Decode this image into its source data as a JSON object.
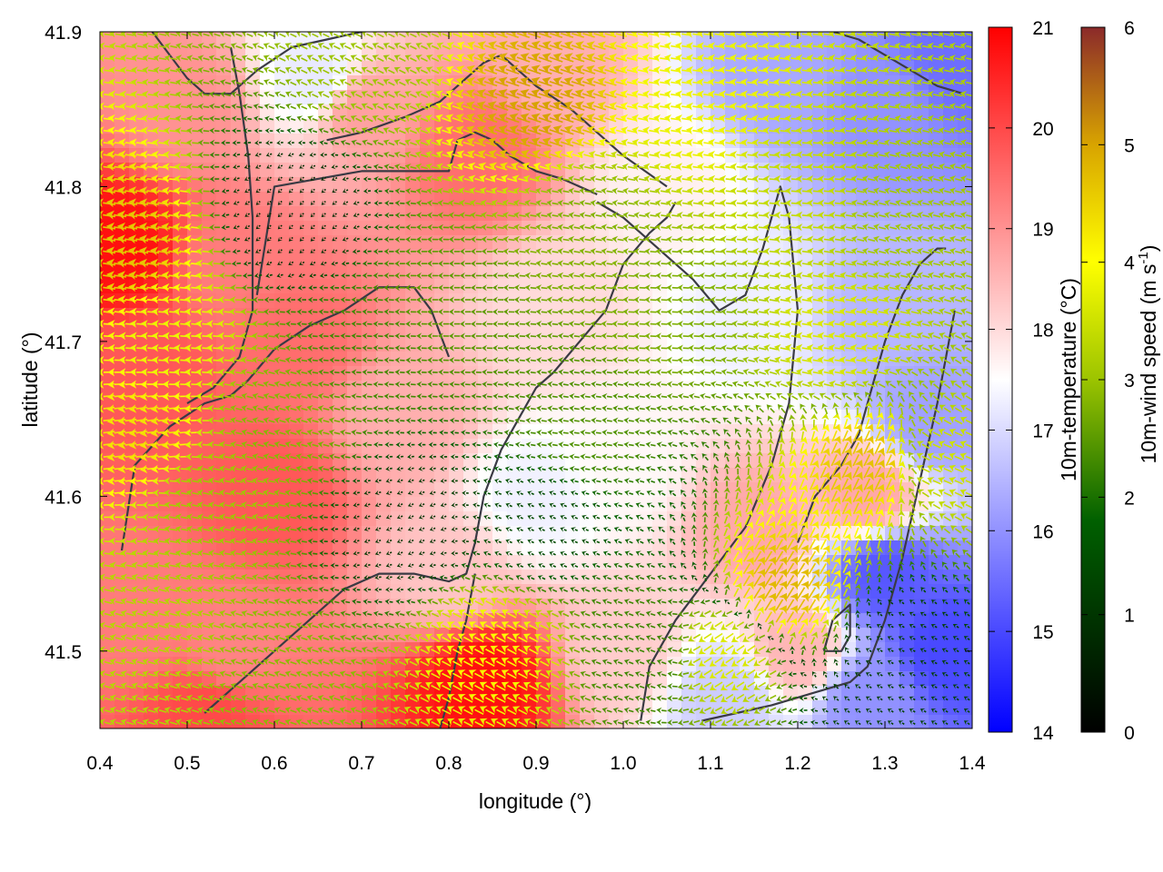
{
  "chart_data": {
    "type": "heatmap",
    "title": "",
    "xlabel": "longitude (°)",
    "ylabel": "latitude (°)",
    "xlim": [
      0.4,
      1.4
    ],
    "ylim": [
      41.45,
      41.9
    ],
    "xticks": [
      "0.4",
      "0.5",
      "0.6",
      "0.7",
      "0.8",
      "0.9",
      "1.0",
      "1.1",
      "1.2",
      "1.3",
      "1.4"
    ],
    "yticks": [
      "41.5",
      "41.6",
      "41.7",
      "41.8",
      "41.9"
    ],
    "grid": false,
    "temperature_colorbar": {
      "label": "10m-temperature (°C)",
      "range": [
        14,
        21
      ],
      "ticks": [
        "14",
        "15",
        "16",
        "17",
        "18",
        "19",
        "20",
        "21"
      ],
      "colors": [
        "#0000ff",
        "#ffffff",
        "#ff0000"
      ]
    },
    "wind_colorbar": {
      "label_main": "10m-wind speed (m s",
      "label_sup": "-1",
      "label_end": ")",
      "range": [
        0,
        6
      ],
      "ticks": [
        "0",
        "1",
        "2",
        "3",
        "4",
        "5",
        "6"
      ],
      "colors": [
        "#000000",
        "#006000",
        "#9cc400",
        "#ffff00",
        "#d8a400",
        "#a0522d",
        "#8b2a2a"
      ]
    },
    "temperature_field_points": [
      {
        "lon": 0.42,
        "lat": 41.76,
        "value": 20.8
      },
      {
        "lon": 0.45,
        "lat": 41.68,
        "value": 19.8
      },
      {
        "lon": 0.5,
        "lat": 41.85,
        "value": 19.0
      },
      {
        "lon": 0.55,
        "lat": 41.75,
        "value": 19.3
      },
      {
        "lon": 0.6,
        "lat": 41.6,
        "value": 19.8
      },
      {
        "lon": 0.62,
        "lat": 41.7,
        "value": 19.5
      },
      {
        "lon": 0.55,
        "lat": 41.5,
        "value": 19.2
      },
      {
        "lon": 0.52,
        "lat": 41.46,
        "value": 20.0
      },
      {
        "lon": 0.7,
        "lat": 41.85,
        "value": 18.8
      },
      {
        "lon": 0.83,
        "lat": 41.82,
        "value": 19.5
      },
      {
        "lon": 0.75,
        "lat": 41.65,
        "value": 18.6
      },
      {
        "lon": 0.8,
        "lat": 41.55,
        "value": 18.3
      },
      {
        "lon": 0.84,
        "lat": 41.48,
        "value": 20.8
      },
      {
        "lon": 0.92,
        "lat": 41.72,
        "value": 18.0
      },
      {
        "lon": 1.0,
        "lat": 41.62,
        "value": 17.6
      },
      {
        "lon": 1.0,
        "lat": 41.5,
        "value": 18.2
      },
      {
        "lon": 1.05,
        "lat": 41.8,
        "value": 17.7
      },
      {
        "lon": 1.15,
        "lat": 41.72,
        "value": 17.3
      },
      {
        "lon": 1.18,
        "lat": 41.87,
        "value": 16.3
      },
      {
        "lon": 1.3,
        "lat": 41.85,
        "value": 16.0
      },
      {
        "lon": 1.38,
        "lat": 41.88,
        "value": 15.5
      },
      {
        "lon": 1.3,
        "lat": 41.72,
        "value": 16.5
      },
      {
        "lon": 1.35,
        "lat": 41.65,
        "value": 16.2
      },
      {
        "lon": 1.28,
        "lat": 41.6,
        "value": 18.7
      },
      {
        "lon": 1.3,
        "lat": 41.55,
        "value": 15.2
      },
      {
        "lon": 1.37,
        "lat": 41.5,
        "value": 15.0
      },
      {
        "lon": 1.2,
        "lat": 41.5,
        "value": 18.5
      },
      {
        "lon": 1.15,
        "lat": 41.58,
        "value": 18.7
      },
      {
        "lon": 1.12,
        "lat": 41.47,
        "value": 16.8
      },
      {
        "lon": 0.9,
        "lat": 41.6,
        "value": 17.3
      },
      {
        "lon": 0.45,
        "lat": 41.52,
        "value": 19.3
      },
      {
        "lon": 0.65,
        "lat": 41.87,
        "value": 17.2
      },
      {
        "lon": 0.92,
        "lat": 41.88,
        "value": 18.6
      },
      {
        "lon": 1.28,
        "lat": 41.47,
        "value": 16.0
      }
    ],
    "wind_field_points": [
      {
        "lon": 0.43,
        "lat": 41.76,
        "u": -3.6,
        "v": 0.5
      },
      {
        "lon": 0.45,
        "lat": 41.64,
        "u": -3.3,
        "v": -0.4
      },
      {
        "lon": 0.48,
        "lat": 41.7,
        "u": -2.8,
        "v": 0.2
      },
      {
        "lon": 0.53,
        "lat": 41.6,
        "u": -2.0,
        "v": 0.4
      },
      {
        "lon": 0.45,
        "lat": 41.5,
        "u": -2.2,
        "v": 0.6
      },
      {
        "lon": 0.62,
        "lat": 41.78,
        "u": -0.3,
        "v": -0.3
      },
      {
        "lon": 0.6,
        "lat": 41.65,
        "u": -1.8,
        "v": 0.5
      },
      {
        "lon": 0.7,
        "lat": 41.7,
        "u": -1.4,
        "v": 0.1
      },
      {
        "lon": 0.8,
        "lat": 41.73,
        "u": -1.6,
        "v": 0.0
      },
      {
        "lon": 0.75,
        "lat": 41.58,
        "u": -0.5,
        "v": -0.2
      },
      {
        "lon": 0.85,
        "lat": 41.5,
        "u": -2.6,
        "v": 1.4
      },
      {
        "lon": 0.95,
        "lat": 41.65,
        "u": -1.5,
        "v": 0.2
      },
      {
        "lon": 0.95,
        "lat": 41.78,
        "u": -1.8,
        "v": 0.3
      },
      {
        "lon": 0.9,
        "lat": 41.85,
        "u": -3.8,
        "v": 1.3
      },
      {
        "lon": 1.05,
        "lat": 41.72,
        "u": -1.8,
        "v": 0.1
      },
      {
        "lon": 1.1,
        "lat": 41.85,
        "u": -2.8,
        "v": 0.4
      },
      {
        "lon": 1.2,
        "lat": 41.8,
        "u": -2.4,
        "v": 0.2
      },
      {
        "lon": 1.25,
        "lat": 41.7,
        "u": -2.6,
        "v": 0.4
      },
      {
        "lon": 1.32,
        "lat": 41.78,
        "u": -2.0,
        "v": 0.5
      },
      {
        "lon": 1.37,
        "lat": 41.62,
        "u": -2.3,
        "v": 1.0
      },
      {
        "lon": 1.28,
        "lat": 41.62,
        "u": 1.6,
        "v": 3.3
      },
      {
        "lon": 1.18,
        "lat": 41.54,
        "u": 2.0,
        "v": 3.2
      },
      {
        "lon": 1.12,
        "lat": 41.5,
        "u": -2.2,
        "v": -1.5
      },
      {
        "lon": 1.02,
        "lat": 41.5,
        "u": -1.3,
        "v": 0.5
      },
      {
        "lon": 1.32,
        "lat": 41.5,
        "u": -0.6,
        "v": 0.3
      },
      {
        "lon": 0.7,
        "lat": 41.88,
        "u": -1.8,
        "v": 0.9
      },
      {
        "lon": 0.6,
        "lat": 41.48,
        "u": -1.8,
        "v": 0.6
      },
      {
        "lon": 0.9,
        "lat": 41.58,
        "u": -0.7,
        "v": 0.3
      }
    ],
    "coastline_segments": [
      {
        "label": "A",
        "lon": [
          0.425,
          0.44,
          0.48,
          0.52,
          0.55,
          0.57,
          0.6,
          0.64,
          0.68,
          0.72,
          0.76,
          0.78,
          0.8
        ],
        "lat": [
          41.565,
          41.62,
          41.645,
          41.66,
          41.665,
          41.675,
          41.695,
          41.71,
          41.72,
          41.735,
          41.735,
          41.72,
          41.69
        ]
      },
      {
        "label": "B",
        "lon": [
          0.5,
          0.53,
          0.56,
          0.575,
          0.575,
          0.57,
          0.56,
          0.55
        ],
        "lat": [
          41.66,
          41.67,
          41.69,
          41.72,
          41.78,
          41.82,
          41.86,
          41.89
        ]
      },
      {
        "label": "C",
        "lon": [
          0.58,
          0.6,
          0.7,
          0.77,
          0.8,
          0.81,
          0.83,
          0.85,
          0.87,
          0.9,
          0.93,
          0.97
        ],
        "lat": [
          41.73,
          41.8,
          41.81,
          41.81,
          41.81,
          41.83,
          41.835,
          41.83,
          41.82,
          41.81,
          41.805,
          41.795
        ]
      },
      {
        "label": "D",
        "lon": [
          0.66,
          0.7,
          0.75,
          0.79,
          0.82,
          0.84,
          0.86,
          0.9,
          0.94,
          0.97,
          1.0,
          1.05
        ],
        "lat": [
          41.83,
          41.835,
          41.845,
          41.855,
          41.87,
          41.88,
          41.885,
          41.865,
          41.85,
          41.835,
          41.82,
          41.8
        ]
      },
      {
        "label": "E",
        "lon": [
          0.97,
          1.0,
          1.04,
          1.08,
          1.11,
          1.14,
          1.16,
          1.18,
          1.19,
          1.2,
          1.19,
          1.17,
          1.14,
          1.1,
          1.06,
          1.03,
          1.02
        ],
        "lat": [
          41.79,
          41.78,
          41.76,
          41.74,
          41.72,
          41.73,
          41.76,
          41.8,
          41.78,
          41.72,
          41.66,
          41.62,
          41.58,
          41.55,
          41.52,
          41.49,
          41.455
        ]
      },
      {
        "label": "F",
        "lon": [
          0.52,
          0.56,
          0.6,
          0.64,
          0.68,
          0.72,
          0.76,
          0.8,
          0.82,
          0.83,
          0.84,
          0.86,
          0.88,
          0.9,
          0.92,
          0.95,
          0.98,
          1.0,
          1.03,
          1.05,
          1.06
        ],
        "lat": [
          41.46,
          41.48,
          41.5,
          41.52,
          41.54,
          41.55,
          41.55,
          41.545,
          41.55,
          41.57,
          41.6,
          41.63,
          41.65,
          41.67,
          41.68,
          41.7,
          41.72,
          41.75,
          41.77,
          41.78,
          41.79
        ]
      },
      {
        "label": "G",
        "lon": [
          0.79,
          0.8,
          0.81,
          0.82,
          0.83
        ],
        "lat": [
          41.45,
          41.47,
          41.5,
          41.52,
          41.55
        ]
      },
      {
        "label": "H",
        "lon": [
          1.09,
          1.13,
          1.17,
          1.2,
          1.23,
          1.26,
          1.28,
          1.3,
          1.32,
          1.34,
          1.36,
          1.38
        ],
        "lat": [
          41.455,
          41.46,
          41.465,
          41.47,
          41.475,
          41.48,
          41.49,
          41.52,
          41.56,
          41.61,
          41.66,
          41.72
        ]
      },
      {
        "label": "I",
        "lon": [
          1.2,
          1.22,
          1.25,
          1.27,
          1.28,
          1.3,
          1.32,
          1.34,
          1.36,
          1.37
        ],
        "lat": [
          41.57,
          41.6,
          41.62,
          41.64,
          41.66,
          41.7,
          41.73,
          41.75,
          41.76,
          41.76
        ]
      },
      {
        "label": "J",
        "lon": [
          1.23,
          1.24,
          1.26,
          1.26,
          1.25,
          1.23
        ],
        "lat": [
          41.5,
          41.52,
          41.53,
          41.51,
          41.5,
          41.5
        ]
      },
      {
        "label": "K",
        "lon": [
          0.46,
          0.48,
          0.5,
          0.52,
          0.55,
          0.58,
          0.62,
          0.66,
          0.7
        ],
        "lat": [
          41.9,
          41.885,
          41.87,
          41.86,
          41.86,
          41.875,
          41.89,
          41.895,
          41.9
        ]
      },
      {
        "label": "L",
        "lon": [
          1.24,
          1.27,
          1.3,
          1.33,
          1.36,
          1.39
        ],
        "lat": [
          41.9,
          41.895,
          41.885,
          41.875,
          41.865,
          41.86
        ]
      }
    ]
  }
}
